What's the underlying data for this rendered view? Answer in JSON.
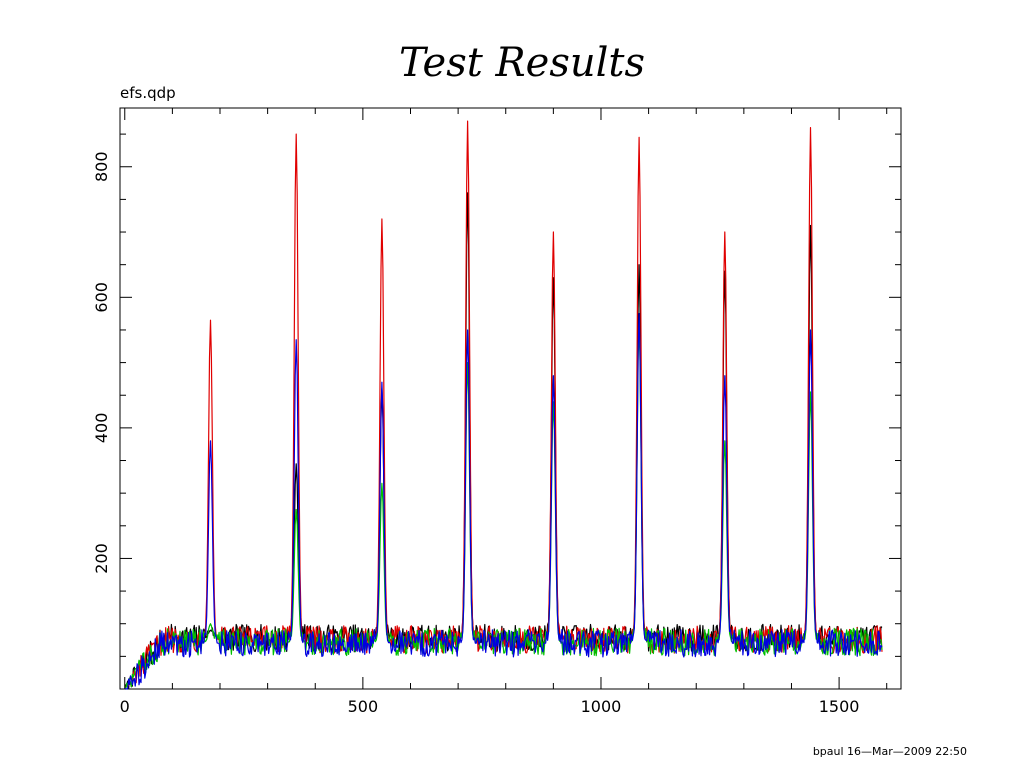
{
  "slide": {
    "title": "Test Results",
    "plot_filename": "efs.qdp",
    "footer": "bpaul 16—Mar—2009 22:50"
  },
  "chart_data": {
    "type": "line",
    "title": "",
    "xlabel": "",
    "ylabel": "",
    "xlim": [
      -10,
      1630
    ],
    "ylim": [
      0,
      890
    ],
    "x_ticks": [
      0,
      500,
      1000,
      1500
    ],
    "y_ticks": [
      200,
      400,
      600,
      800
    ],
    "grid": false,
    "series": [
      {
        "color": "#000000",
        "baseline": 78,
        "peaks": [
          [
            180,
            90
          ],
          [
            360,
            345
          ],
          [
            540,
            460
          ],
          [
            720,
            760
          ],
          [
            900,
            630
          ],
          [
            1080,
            650
          ],
          [
            1260,
            640
          ],
          [
            1440,
            710
          ]
        ]
      },
      {
        "color": "#e00000",
        "baseline": 76,
        "peaks": [
          [
            180,
            565
          ],
          [
            360,
            850
          ],
          [
            540,
            720
          ],
          [
            720,
            870
          ],
          [
            900,
            700
          ],
          [
            1080,
            845
          ],
          [
            1260,
            700
          ],
          [
            1440,
            860
          ]
        ]
      },
      {
        "color": "#00c000",
        "baseline": 72,
        "peaks": [
          [
            180,
            100
          ],
          [
            360,
            275
          ],
          [
            540,
            315
          ],
          [
            720,
            500
          ],
          [
            900,
            440
          ],
          [
            1080,
            560
          ],
          [
            1260,
            380
          ],
          [
            1440,
            455
          ]
        ]
      },
      {
        "color": "#0000e0",
        "baseline": 70,
        "peaks": [
          [
            180,
            380
          ],
          [
            360,
            535
          ],
          [
            540,
            470
          ],
          [
            720,
            550
          ],
          [
            900,
            480
          ],
          [
            1080,
            575
          ],
          [
            1260,
            480
          ],
          [
            1440,
            550
          ]
        ]
      }
    ]
  }
}
